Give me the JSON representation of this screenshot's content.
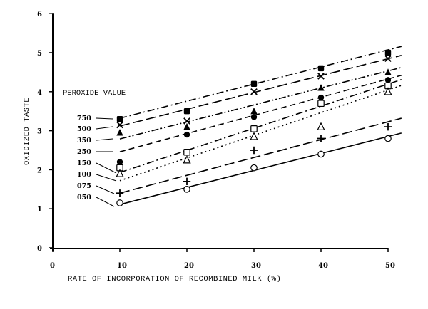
{
  "chart_data": {
    "type": "line",
    "title": "",
    "xlabel": "RATE OF INCORPORATION OF RECOMBINED MILK (%)",
    "ylabel": "OXIDIZED TASTE",
    "xlim": [
      0,
      50
    ],
    "ylim": [
      0,
      6
    ],
    "x_ticks": [
      "0",
      "10",
      "20",
      "30",
      "40",
      "50"
    ],
    "y_ticks": [
      "0",
      "1",
      "2",
      "3",
      "4",
      "5",
      "6"
    ],
    "grid": false,
    "legend_title": "PEROXIDE VALUE",
    "legend_position": "inside-left",
    "x": [
      10,
      20,
      30,
      40,
      50
    ],
    "series": [
      {
        "name": "750",
        "marker": "filled-square",
        "line_style": "dash-dot",
        "values": [
          3.3,
          3.5,
          4.2,
          4.6,
          5.0
        ]
      },
      {
        "name": "500",
        "marker": "x",
        "line_style": "long-dash",
        "values": [
          3.15,
          3.25,
          4.0,
          4.4,
          4.85
        ]
      },
      {
        "name": "350",
        "marker": "filled-triangle",
        "line_style": "dash-dot-dot",
        "values": [
          2.95,
          3.1,
          3.5,
          4.1,
          4.5
        ]
      },
      {
        "name": "250",
        "marker": "filled-circle",
        "line_style": "dashed",
        "values": [
          2.2,
          2.9,
          3.35,
          3.85,
          4.3
        ]
      },
      {
        "name": "150",
        "marker": "open-square",
        "line_style": "dash-dot",
        "values": [
          2.05,
          2.45,
          3.05,
          3.7,
          4.15
        ]
      },
      {
        "name": "100",
        "marker": "open-triangle",
        "line_style": "dotted",
        "values": [
          1.9,
          2.25,
          2.85,
          3.1,
          4.0
        ]
      },
      {
        "name": "075",
        "marker": "plus",
        "line_style": "long-dash",
        "values": [
          1.4,
          1.7,
          2.5,
          2.8,
          3.1
        ]
      },
      {
        "name": "050",
        "marker": "open-circle",
        "line_style": "solid",
        "values": [
          1.15,
          1.5,
          2.05,
          2.4,
          2.8
        ]
      }
    ],
    "fitted_lines": [
      {
        "name": "750",
        "from": [
          10,
          3.32
        ],
        "to": [
          52,
          5.16
        ]
      },
      {
        "name": "500",
        "from": [
          10,
          3.12
        ],
        "to": [
          52,
          4.93
        ]
      },
      {
        "name": "350",
        "from": [
          10,
          2.79
        ],
        "to": [
          52,
          4.62
        ]
      },
      {
        "name": "250",
        "from": [
          10,
          2.46
        ],
        "to": [
          52,
          4.42
        ]
      },
      {
        "name": "150",
        "from": [
          10,
          1.93
        ],
        "to": [
          52,
          4.31
        ]
      },
      {
        "name": "100",
        "from": [
          10,
          1.72
        ],
        "to": [
          52,
          4.16
        ]
      },
      {
        "name": "075",
        "from": [
          10,
          1.4
        ],
        "to": [
          52,
          3.32
        ]
      },
      {
        "name": "050",
        "from": [
          10,
          1.11
        ],
        "to": [
          52,
          2.94
        ]
      }
    ]
  }
}
